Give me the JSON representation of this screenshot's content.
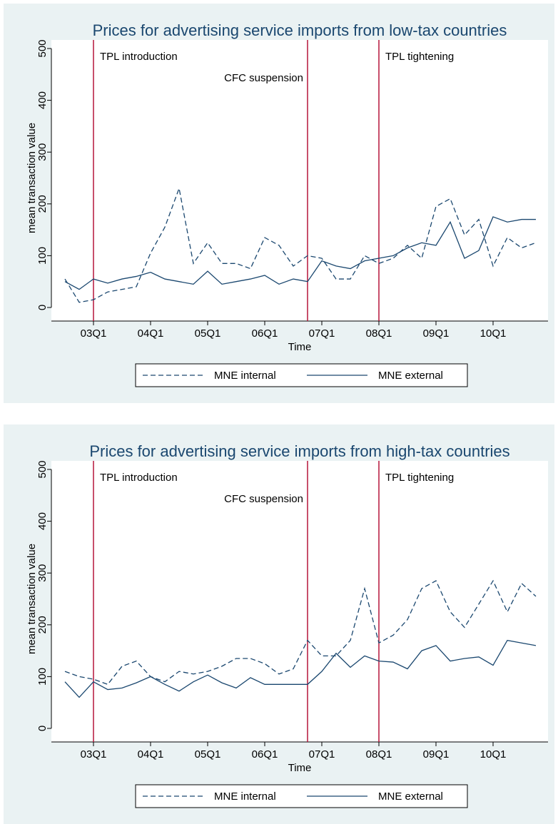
{
  "chart_data": [
    {
      "type": "line",
      "title": "Prices for advertising service imports from low-tax countries",
      "xlabel": "Time",
      "ylabel": "mean transaction value",
      "x": [
        170,
        171,
        172,
        173,
        174,
        175,
        176,
        177,
        178,
        179,
        180,
        181,
        182,
        183,
        184,
        185,
        186,
        187,
        188,
        189,
        190,
        191,
        192,
        193,
        194,
        195,
        196,
        197,
        198,
        199,
        200,
        201,
        202,
        203
      ],
      "xlim": [
        170,
        203
      ],
      "xticks": [
        {
          "value": 172,
          "label": "03Q1"
        },
        {
          "value": 176,
          "label": "04Q1"
        },
        {
          "value": 180,
          "label": "05Q1"
        },
        {
          "value": 184,
          "label": "06Q1"
        },
        {
          "value": 188,
          "label": "07Q1"
        },
        {
          "value": 192,
          "label": "08Q1"
        },
        {
          "value": 196,
          "label": "09Q1"
        },
        {
          "value": 200,
          "label": "10Q1"
        }
      ],
      "ylim": [
        0,
        500
      ],
      "yticks": [
        0,
        100,
        200,
        300,
        400,
        500
      ],
      "legend": "bottom",
      "series": [
        {
          "name": "MNE internal",
          "color": "#1a476f",
          "style": "dashed",
          "values": [
            55,
            10,
            15,
            30,
            35,
            40,
            105,
            155,
            230,
            85,
            125,
            85,
            85,
            75,
            135,
            120,
            80,
            100,
            95,
            55,
            55,
            100,
            85,
            95,
            120,
            95,
            195,
            210,
            140,
            170,
            80,
            135,
            115,
            125
          ]
        },
        {
          "name": "MNE external",
          "color": "#1a476f",
          "style": "solid",
          "values": [
            50,
            35,
            55,
            47,
            55,
            60,
            68,
            55,
            50,
            45,
            70,
            45,
            50,
            55,
            62,
            45,
            55,
            50,
            90,
            80,
            75,
            90,
            95,
            100,
            115,
            125,
            120,
            165,
            95,
            110,
            175,
            165,
            170,
            170
          ]
        }
      ],
      "vlines": [
        {
          "x": 172,
          "label": "TPL introduction",
          "color": "#b5153a"
        },
        {
          "x": 187,
          "label": "CFC suspension",
          "color": "#b5153a"
        },
        {
          "x": 192,
          "label": "TPL tightening",
          "color": "#b5153a"
        }
      ]
    },
    {
      "type": "line",
      "title": "Prices for advertising service imports from high-tax countries",
      "xlabel": "Time",
      "ylabel": "mean transaction value",
      "x": [
        170,
        171,
        172,
        173,
        174,
        175,
        176,
        177,
        178,
        179,
        180,
        181,
        182,
        183,
        184,
        185,
        186,
        187,
        188,
        189,
        190,
        191,
        192,
        193,
        194,
        195,
        196,
        197,
        198,
        199,
        200,
        201,
        202,
        203
      ],
      "xlim": [
        170,
        203
      ],
      "xticks": [
        {
          "value": 172,
          "label": "03Q1"
        },
        {
          "value": 176,
          "label": "04Q1"
        },
        {
          "value": 180,
          "label": "05Q1"
        },
        {
          "value": 184,
          "label": "06Q1"
        },
        {
          "value": 188,
          "label": "07Q1"
        },
        {
          "value": 192,
          "label": "08Q1"
        },
        {
          "value": 196,
          "label": "09Q1"
        },
        {
          "value": 200,
          "label": "10Q1"
        }
      ],
      "ylim": [
        0,
        500
      ],
      "yticks": [
        0,
        100,
        200,
        300,
        400,
        500
      ],
      "legend": "bottom",
      "series": [
        {
          "name": "MNE internal",
          "color": "#1a476f",
          "style": "dashed",
          "values": [
            110,
            100,
            95,
            85,
            120,
            130,
            100,
            90,
            110,
            105,
            110,
            120,
            135,
            135,
            125,
            105,
            115,
            170,
            140,
            140,
            170,
            270,
            165,
            180,
            210,
            270,
            285,
            225,
            195,
            240,
            285,
            225,
            280,
            255
          ]
        },
        {
          "name": "MNE external",
          "color": "#1a476f",
          "style": "solid",
          "values": [
            90,
            60,
            90,
            75,
            78,
            88,
            100,
            85,
            72,
            90,
            103,
            88,
            78,
            98,
            85,
            85,
            85,
            85,
            110,
            145,
            118,
            140,
            130,
            128,
            115,
            150,
            160,
            130,
            135,
            138,
            122,
            170,
            165,
            160
          ]
        }
      ],
      "vlines": [
        {
          "x": 172,
          "label": "TPL introduction",
          "color": "#b5153a"
        },
        {
          "x": 187,
          "label": "CFC suspension",
          "color": "#b5153a"
        },
        {
          "x": 192,
          "label": "TPL tightening",
          "color": "#b5153a"
        }
      ]
    }
  ]
}
